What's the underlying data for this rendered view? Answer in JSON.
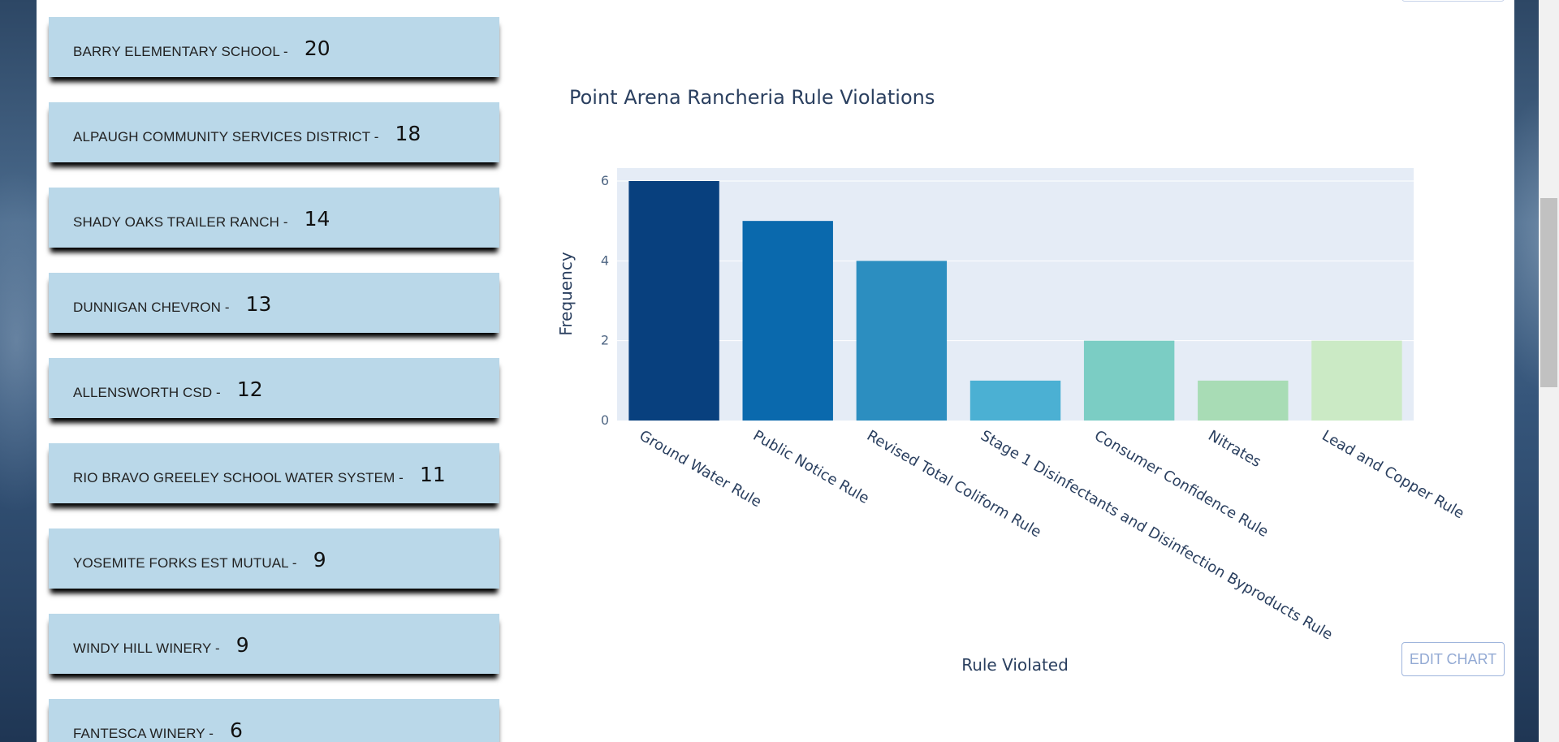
{
  "systems": [
    {
      "name": "BARRY ELEMENTARY SCHOOL -",
      "count": "20"
    },
    {
      "name": "ALPAUGH COMMUNITY SERVICES DISTRICT -",
      "count": "18"
    },
    {
      "name": "SHADY OAKS TRAILER RANCH -",
      "count": "14"
    },
    {
      "name": "DUNNIGAN CHEVRON -",
      "count": "13"
    },
    {
      "name": "ALLENSWORTH CSD -",
      "count": "12"
    },
    {
      "name": "RIO BRAVO GREELEY SCHOOL WATER SYSTEM -",
      "count": "11"
    },
    {
      "name": "YOSEMITE FORKS EST MUTUAL -",
      "count": "9"
    },
    {
      "name": "WINDY HILL WINERY -",
      "count": "9"
    },
    {
      "name": "FANTESCA WINERY -",
      "count": "6"
    }
  ],
  "chart_data": {
    "type": "bar",
    "title": "Point Arena Rancheria Rule Violations",
    "xlabel": "Rule Violated",
    "ylabel": "Frequency",
    "categories": [
      "Ground Water Rule",
      "Public Notice Rule",
      "Revised Total Coliform Rule",
      "Stage 1 Disinfectants and Disinfection Byproducts Rule",
      "Consumer Confidence Rule",
      "Nitrates",
      "Lead and Copper Rule"
    ],
    "values": [
      6,
      5,
      4,
      1,
      2,
      1,
      2
    ],
    "colors": [
      "#08407e",
      "#0a69ad",
      "#2c8ec0",
      "#4bb0d3",
      "#7bcdc4",
      "#a8dcb5",
      "#cbeac5"
    ],
    "yticks": [
      "0",
      "2",
      "4",
      "6"
    ],
    "ylim": [
      0,
      6
    ],
    "grid": true,
    "plot_bg": "#e5ecf6"
  },
  "edit_chart_label": "EDIT CHART"
}
